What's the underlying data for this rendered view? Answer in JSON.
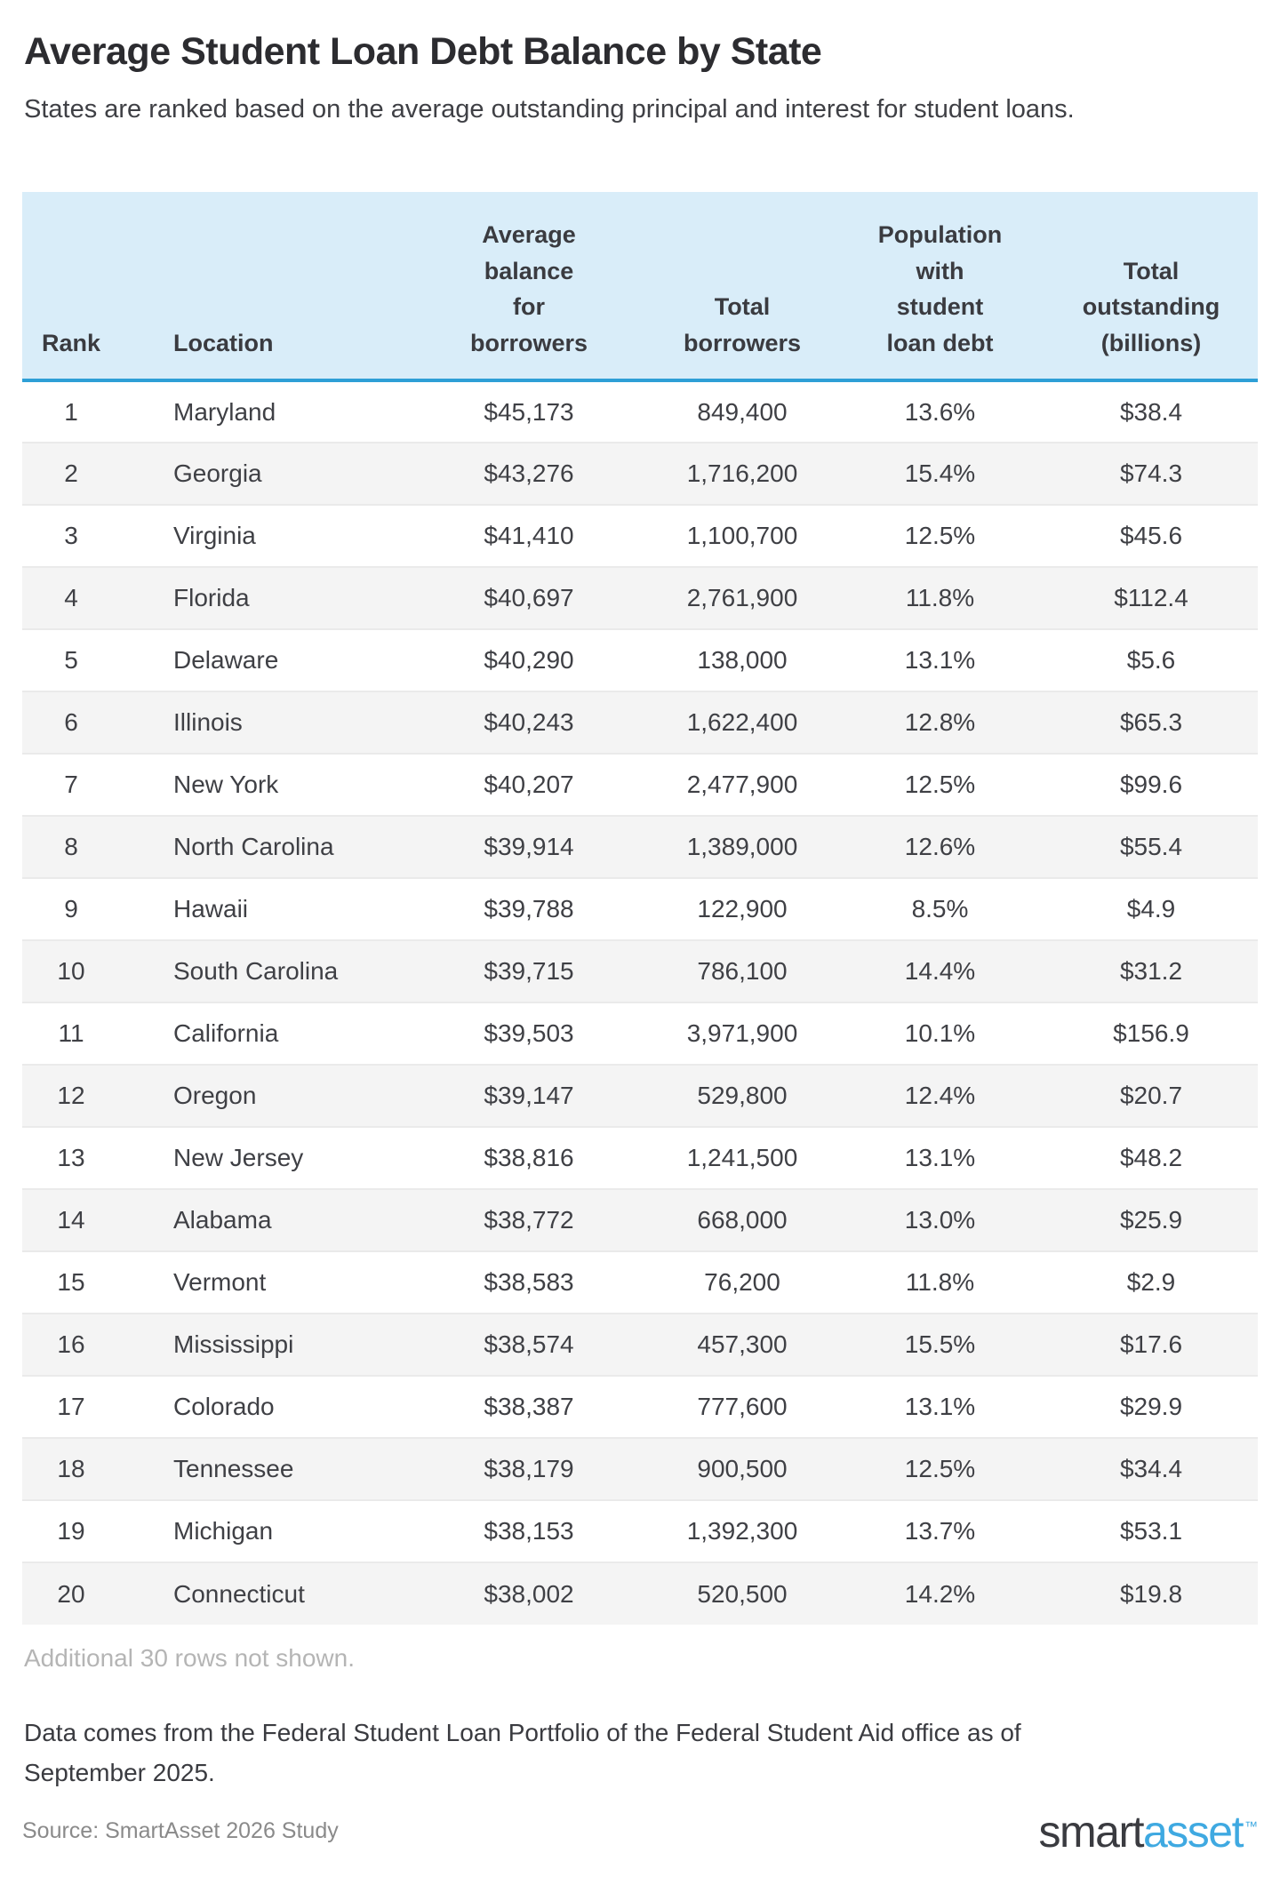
{
  "page": {
    "title": "Average Student Loan Debt Balance by State",
    "subtitle": "States are ranked based on the average outstanding principal and interest for student loans.",
    "additional_note": "Additional 30 rows not shown.",
    "footnote": "Data comes from the Federal Student Loan Portfolio of the Federal Student Aid office as of September 2025.",
    "source": "Source: SmartAsset 2026 Study",
    "logo": {
      "part1": "smart",
      "part2": "asset",
      "tm": "™"
    }
  },
  "colors": {
    "header_bg": "#d9edf9",
    "header_rule": "#2e9fd6",
    "row_alt_bg": "#f4f4f4",
    "accent_blue": "#3fa9e1",
    "muted_gray": "#b5b5b5",
    "text_dark": "#3f4045"
  },
  "table": {
    "headers": [
      "Rank",
      "Location",
      "Average\nbalance\nfor\nborrowers",
      "Total\nborrowers",
      "Population\nwith\nstudent\nloan debt",
      "Total\noutstanding\n(billions)"
    ]
  },
  "chart_data": {
    "type": "table",
    "title": "Average Student Loan Debt Balance by State",
    "columns": [
      "Rank",
      "Location",
      "Average balance for borrowers",
      "Total borrowers",
      "Population with student loan debt",
      "Total outstanding (billions)"
    ],
    "column_keys": [
      "rank",
      "location",
      "avg-balance",
      "total-borrowers",
      "pct-with-debt",
      "total-outstanding"
    ],
    "rows": [
      [
        1,
        "Maryland",
        "$45,173",
        "849,400",
        "13.6%",
        "$38.4"
      ],
      [
        2,
        "Georgia",
        "$43,276",
        "1,716,200",
        "15.4%",
        "$74.3"
      ],
      [
        3,
        "Virginia",
        "$41,410",
        "1,100,700",
        "12.5%",
        "$45.6"
      ],
      [
        4,
        "Florida",
        "$40,697",
        "2,761,900",
        "11.8%",
        "$112.4"
      ],
      [
        5,
        "Delaware",
        "$40,290",
        "138,000",
        "13.1%",
        "$5.6"
      ],
      [
        6,
        "Illinois",
        "$40,243",
        "1,622,400",
        "12.8%",
        "$65.3"
      ],
      [
        7,
        "New York",
        "$40,207",
        "2,477,900",
        "12.5%",
        "$99.6"
      ],
      [
        8,
        "North Carolina",
        "$39,914",
        "1,389,000",
        "12.6%",
        "$55.4"
      ],
      [
        9,
        "Hawaii",
        "$39,788",
        "122,900",
        "8.5%",
        "$4.9"
      ],
      [
        10,
        "South Carolina",
        "$39,715",
        "786,100",
        "14.4%",
        "$31.2"
      ],
      [
        11,
        "California",
        "$39,503",
        "3,971,900",
        "10.1%",
        "$156.9"
      ],
      [
        12,
        "Oregon",
        "$39,147",
        "529,800",
        "12.4%",
        "$20.7"
      ],
      [
        13,
        "New Jersey",
        "$38,816",
        "1,241,500",
        "13.1%",
        "$48.2"
      ],
      [
        14,
        "Alabama",
        "$38,772",
        "668,000",
        "13.0%",
        "$25.9"
      ],
      [
        15,
        "Vermont",
        "$38,583",
        "76,200",
        "11.8%",
        "$2.9"
      ],
      [
        16,
        "Mississippi",
        "$38,574",
        "457,300",
        "15.5%",
        "$17.6"
      ],
      [
        17,
        "Colorado",
        "$38,387",
        "777,600",
        "13.1%",
        "$29.9"
      ],
      [
        18,
        "Tennessee",
        "$38,179",
        "900,500",
        "12.5%",
        "$34.4"
      ],
      [
        19,
        "Michigan",
        "$38,153",
        "1,392,300",
        "13.7%",
        "$53.1"
      ],
      [
        20,
        "Connecticut",
        "$38,002",
        "520,500",
        "14.2%",
        "$19.8"
      ]
    ]
  }
}
